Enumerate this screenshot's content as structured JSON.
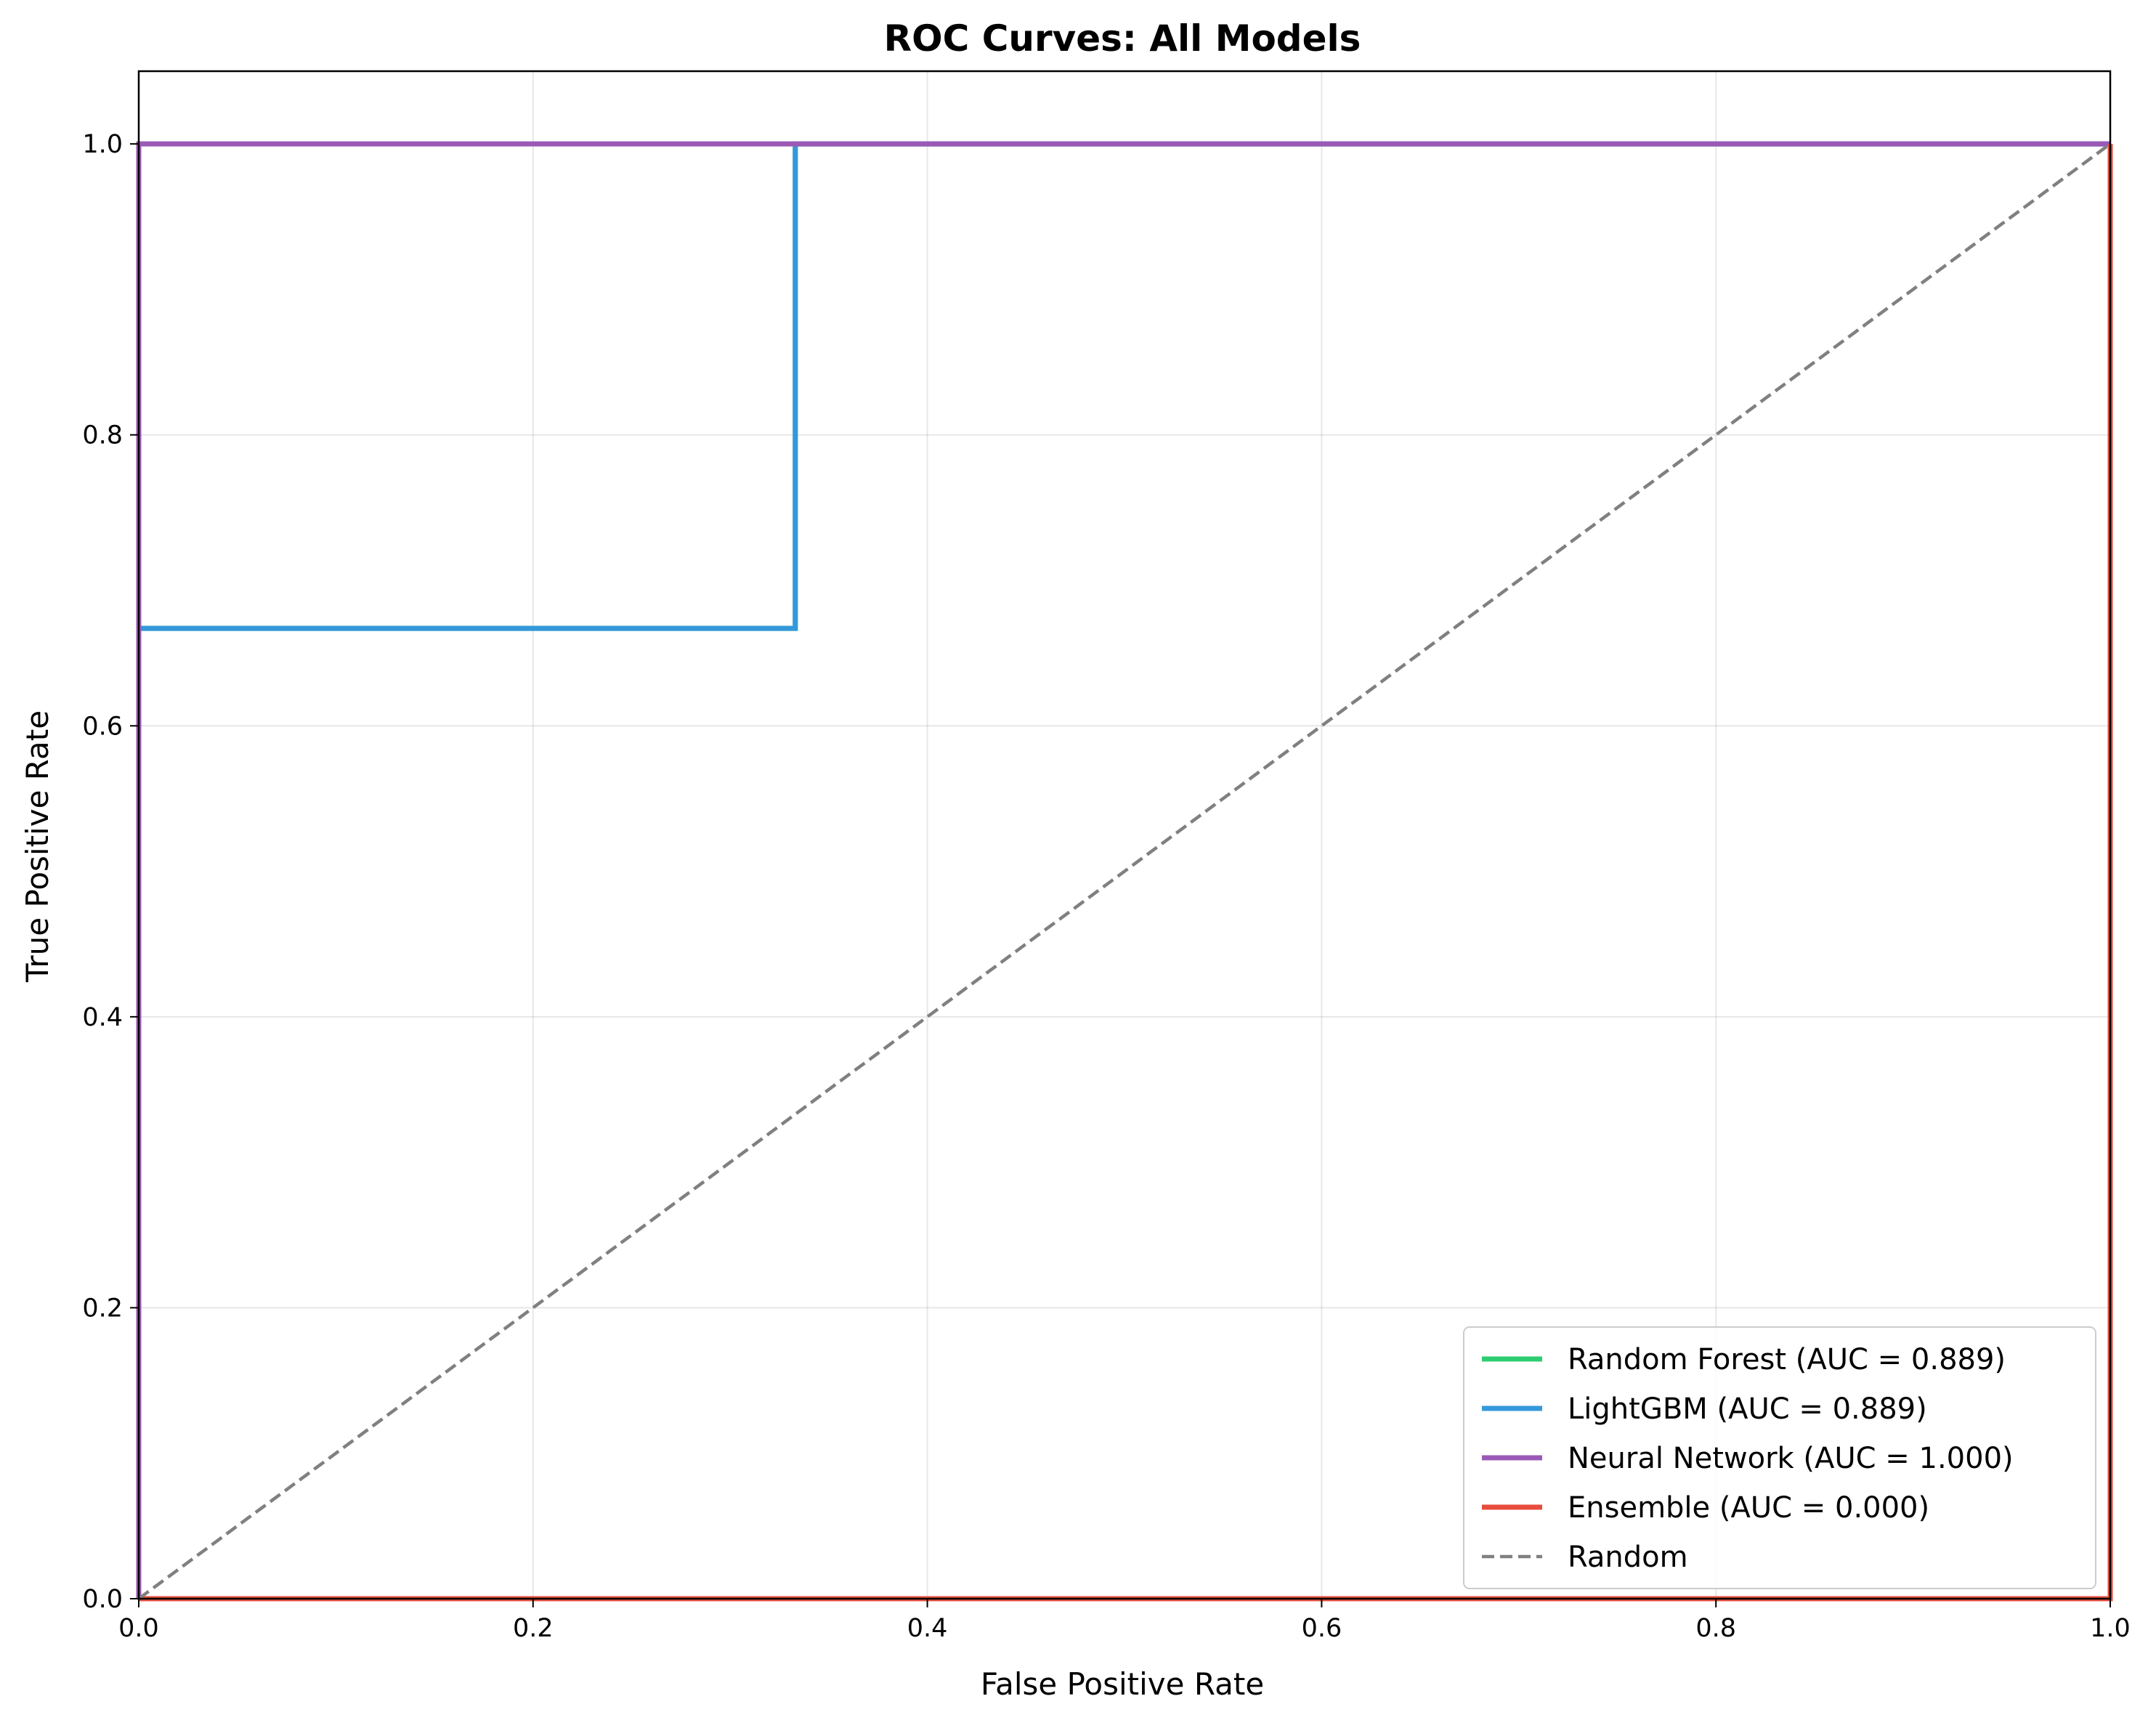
{
  "chart_data": {
    "type": "line",
    "title": "ROC Curves: All Models",
    "xlabel": "False Positive Rate",
    "ylabel": "True Positive Rate",
    "xlim": [
      0.0,
      1.0
    ],
    "ylim": [
      0.0,
      1.05
    ],
    "xticks": [
      "0.0",
      "0.2",
      "0.4",
      "0.6",
      "0.8",
      "1.0"
    ],
    "yticks": [
      "0.0",
      "0.2",
      "0.4",
      "0.6",
      "0.8",
      "1.0"
    ],
    "grid": true,
    "legend_position": "lower-right",
    "series": [
      {
        "name": "Random Forest (AUC = 0.889)",
        "color": "#2ecc71",
        "dash": "solid",
        "x": [
          0.0,
          0.0,
          0.333,
          0.333,
          1.0
        ],
        "y": [
          0.0,
          0.667,
          0.667,
          1.0,
          1.0
        ]
      },
      {
        "name": "LightGBM (AUC = 0.889)",
        "color": "#3498db",
        "dash": "solid",
        "x": [
          0.0,
          0.0,
          0.333,
          0.333,
          1.0
        ],
        "y": [
          0.0,
          0.667,
          0.667,
          1.0,
          1.0
        ]
      },
      {
        "name": "Neural Network (AUC = 1.000)",
        "color": "#9b59b6",
        "dash": "solid",
        "x": [
          0.0,
          0.0,
          1.0
        ],
        "y": [
          0.0,
          1.0,
          1.0
        ]
      },
      {
        "name": "Ensemble (AUC = 0.000)",
        "color": "#e74c3c",
        "dash": "solid",
        "x": [
          0.0,
          1.0,
          1.0
        ],
        "y": [
          0.0,
          0.0,
          1.0
        ]
      },
      {
        "name": "Random",
        "color": "#808080",
        "dash": "dashed",
        "x": [
          0.0,
          1.0
        ],
        "y": [
          0.0,
          1.0
        ]
      }
    ]
  }
}
